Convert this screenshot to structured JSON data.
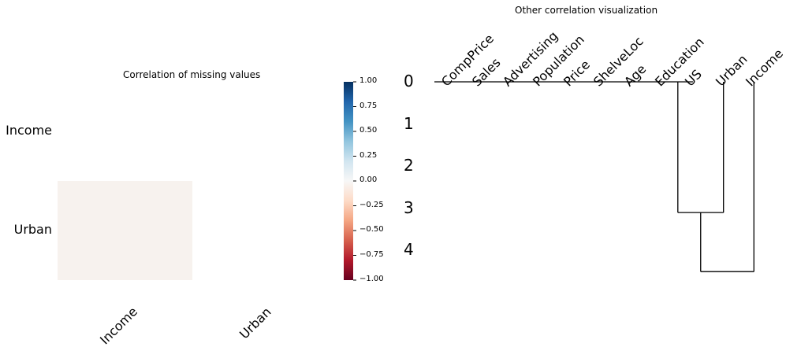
{
  "chart_data": [
    {
      "type": "heatmap",
      "title": "Correlation of missing values",
      "rows": [
        "Income",
        "Urban"
      ],
      "columns": [
        "Income",
        "Urban"
      ],
      "values": [
        [
          null,
          null
        ],
        [
          0.0,
          null
        ]
      ],
      "colorbar": {
        "range": [
          -1.0,
          1.0
        ],
        "ticks": [
          "1.00",
          "0.75",
          "0.50",
          "0.25",
          "0.00",
          "−0.25",
          "−0.50",
          "−0.75",
          "−1.00"
        ],
        "tick_values": [
          1.0,
          0.75,
          0.5,
          0.25,
          0.0,
          -0.25,
          -0.5,
          -0.75,
          -1.0
        ],
        "colormap": "RdBu",
        "colors": [
          "#67001f",
          "#b2182b",
          "#d6604d",
          "#f4a582",
          "#fddbc7",
          "#f7f7f7",
          "#d1e5f0",
          "#92c5de",
          "#4393c3",
          "#2166ac",
          "#053061"
        ]
      },
      "cell_color": "#f7f2ee"
    },
    {
      "type": "dendrogram",
      "title": "Other correlation visualization",
      "leaves": [
        "CompPrice",
        "Sales",
        "Advertising",
        "Population",
        "Price",
        "ShelveLoc",
        "Age",
        "Education",
        "US",
        "Urban",
        "Income"
      ],
      "y_ticks": [
        "0",
        "1",
        "2",
        "3",
        "4"
      ],
      "y_tick_values": [
        0,
        1,
        2,
        3,
        4
      ],
      "links": [
        {
          "left": "Education",
          "right": "US",
          "height": 0,
          "children": [
            7,
            8
          ]
        },
        {
          "left": "Education/US",
          "right": "Urban",
          "height": 3.1,
          "children": [
            7.5,
            9
          ]
        },
        {
          "left": "cluster",
          "right": "Income",
          "height": 4.5,
          "children": [
            8.25,
            10
          ]
        }
      ],
      "zero_height_leaves": [
        "CompPrice",
        "Sales",
        "Advertising",
        "Population",
        "Price",
        "ShelveLoc",
        "Age",
        "Education",
        "US"
      ]
    }
  ]
}
